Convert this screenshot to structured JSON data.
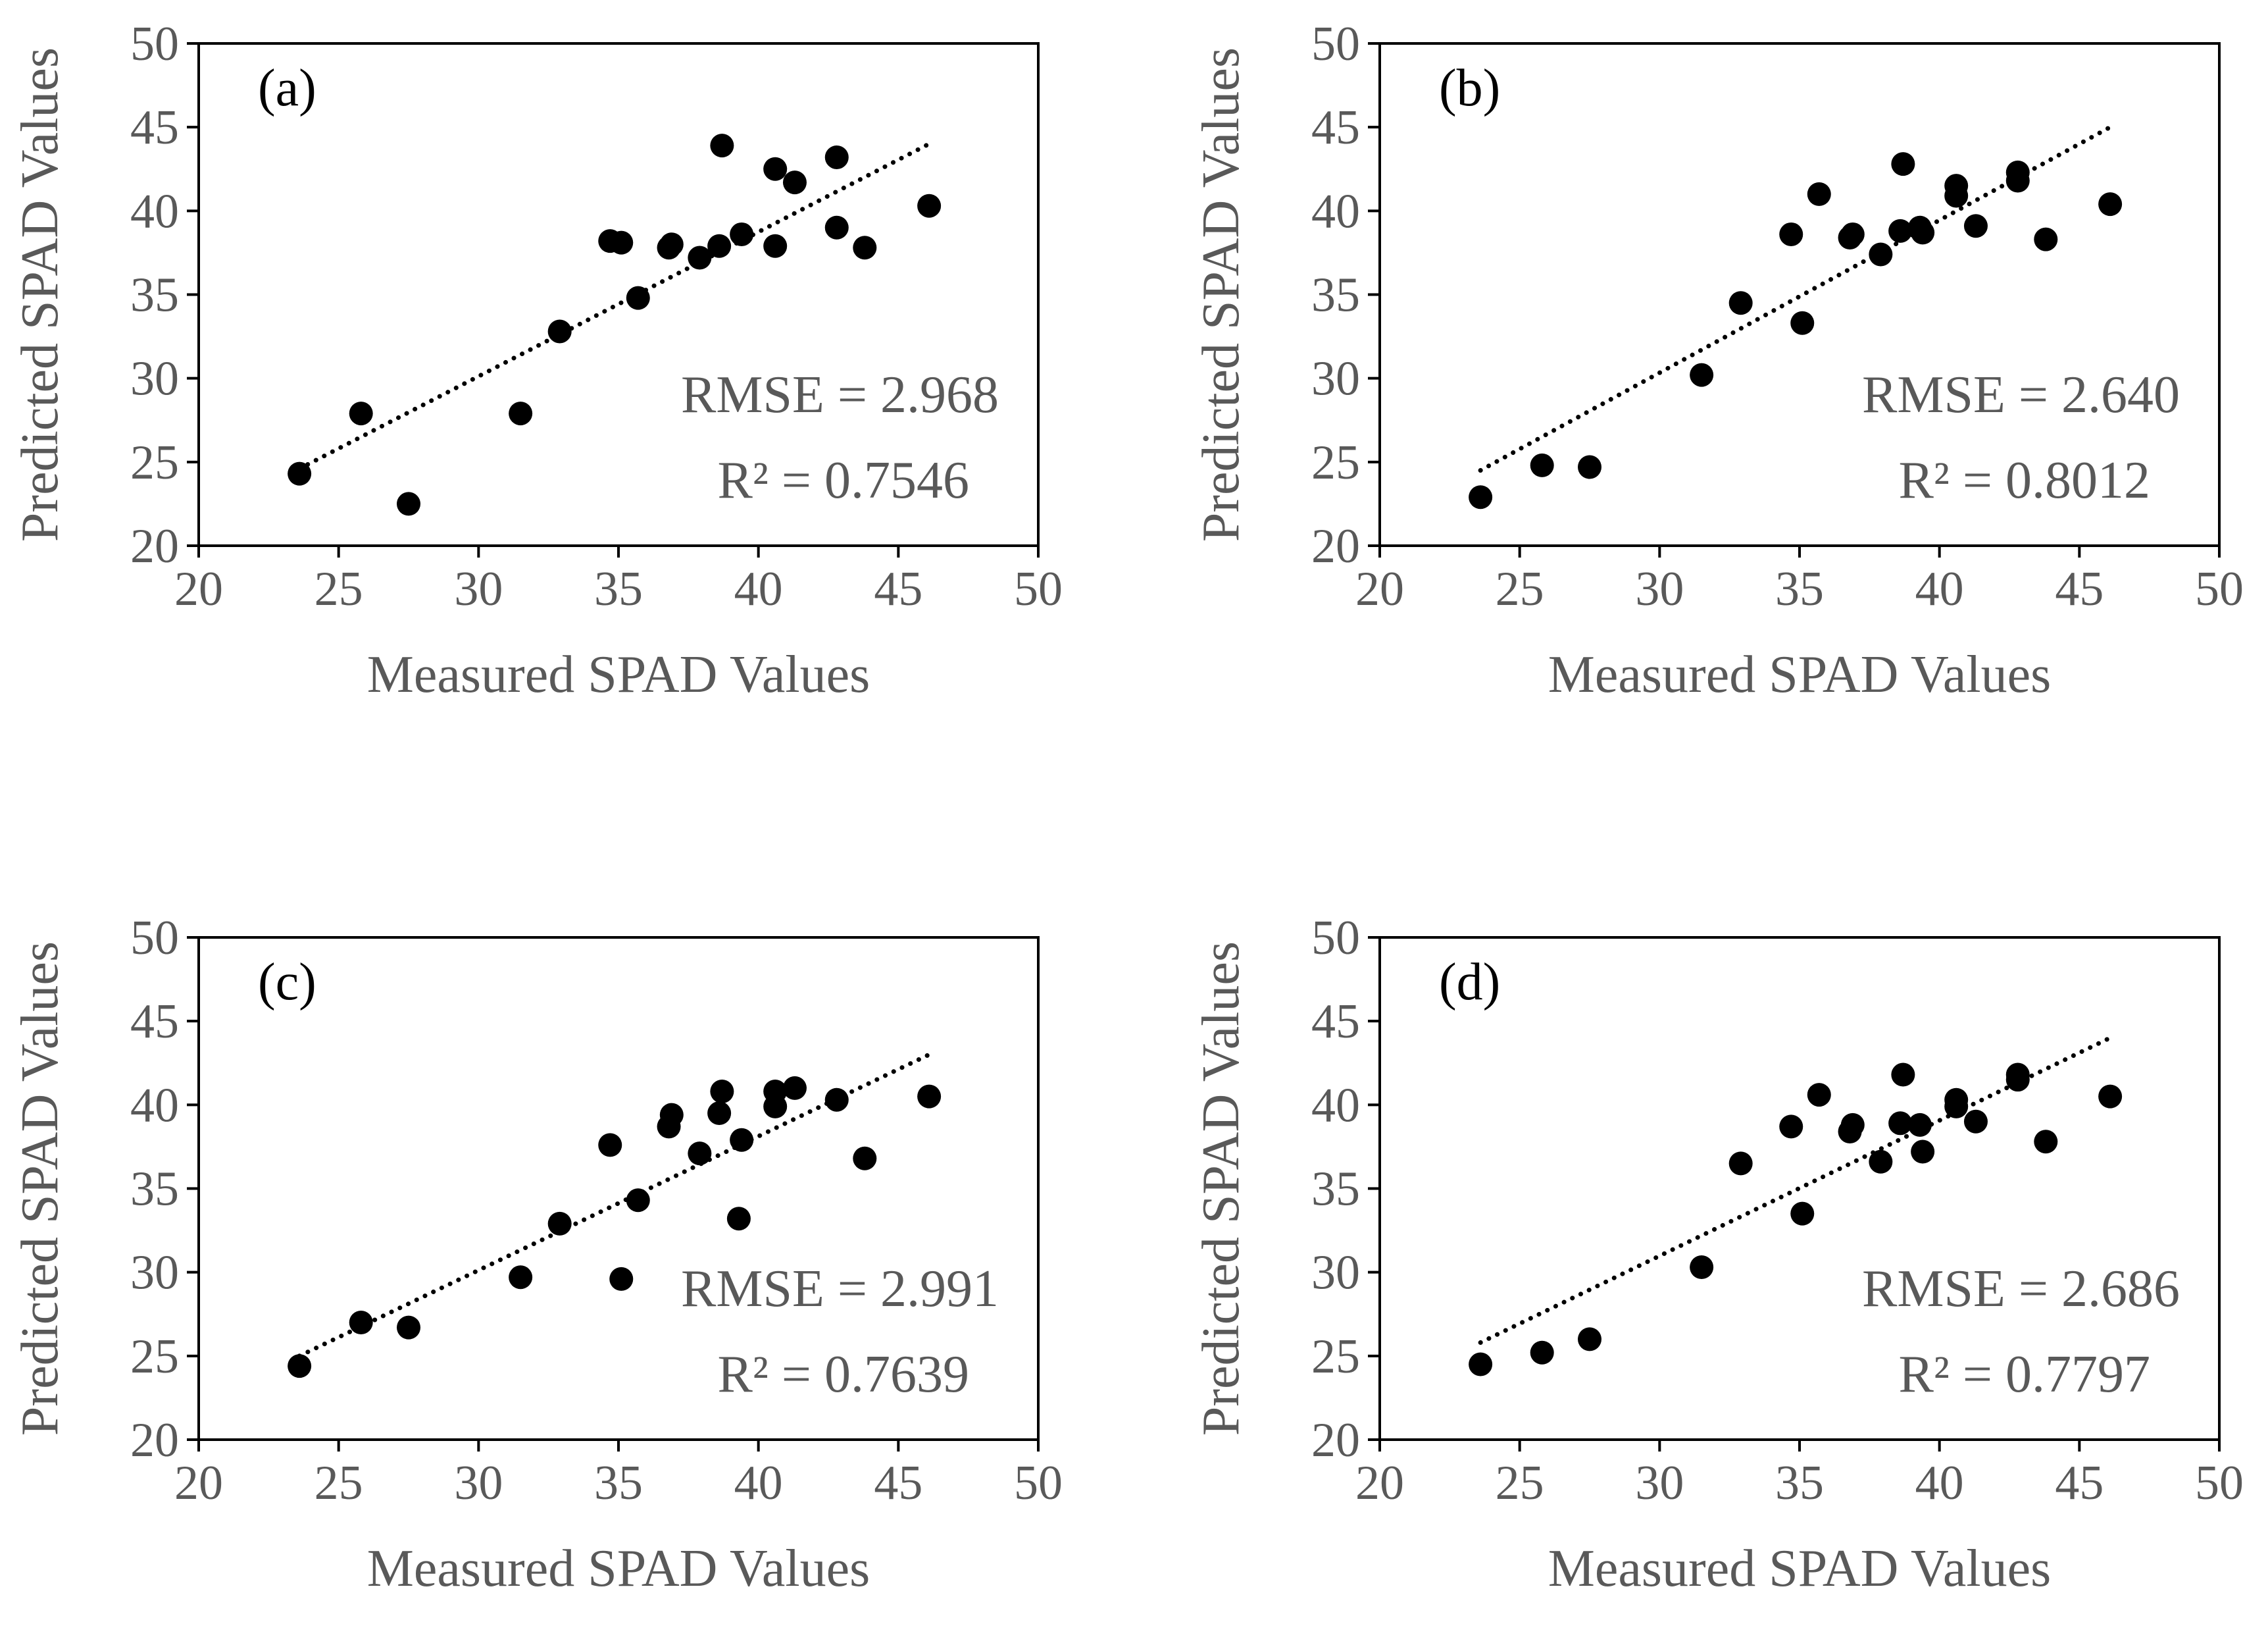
{
  "figure": {
    "colors": {
      "background": "#ffffff",
      "frame": "#000000",
      "marker": "#000000",
      "trendline": "#000000",
      "text": "#595959",
      "axis": "#000000"
    }
  },
  "chart_data": [
    {
      "type": "scatter",
      "panel_label": "(a)",
      "xlabel": "Measured SPAD Values",
      "ylabel": "Predicted SPAD Values",
      "xlim": [
        20,
        50
      ],
      "ylim": [
        20,
        50
      ],
      "xticks": [
        "20",
        "25",
        "30",
        "35",
        "40",
        "45",
        "50"
      ],
      "yticks": [
        "20",
        "25",
        "30",
        "35",
        "40",
        "45",
        "50"
      ],
      "stats": {
        "rmse": "RMSE = 2.968",
        "r2": "R² = 0.7546"
      },
      "trendline": {
        "style": "dotted",
        "x": [
          23.6,
          46.1
        ],
        "y": [
          24.6,
          44.0
        ]
      },
      "series": [
        {
          "name": "samples",
          "x": [
            23.6,
            25.8,
            27.5,
            31.5,
            32.9,
            34.7,
            35.1,
            35.7,
            36.8,
            36.9,
            37.9,
            38.6,
            38.7,
            39.4,
            40.6,
            40.6,
            41.3,
            42.8,
            42.8,
            43.8,
            46.1
          ],
          "y": [
            24.3,
            27.9,
            22.5,
            27.9,
            32.8,
            38.2,
            38.1,
            34.8,
            37.8,
            38.0,
            37.2,
            37.9,
            43.9,
            38.6,
            37.9,
            42.5,
            41.7,
            43.2,
            39.0,
            37.8,
            40.3
          ]
        }
      ]
    },
    {
      "type": "scatter",
      "panel_label": "(b)",
      "xlabel": "Measured SPAD Values",
      "ylabel": "Predicted SPAD Values",
      "xlim": [
        20,
        50
      ],
      "ylim": [
        20,
        50
      ],
      "xticks": [
        "20",
        "25",
        "30",
        "35",
        "40",
        "45",
        "50"
      ],
      "yticks": [
        "20",
        "25",
        "30",
        "35",
        "40",
        "45",
        "50"
      ],
      "stats": {
        "rmse": "RMSE = 2.640",
        "r2": "R² = 0.8012"
      },
      "trendline": {
        "style": "dotted",
        "x": [
          23.6,
          46.1
        ],
        "y": [
          24.5,
          45.0
        ]
      },
      "series": [
        {
          "name": "samples",
          "x": [
            23.6,
            25.8,
            27.5,
            31.5,
            32.9,
            34.7,
            35.1,
            35.7,
            36.8,
            36.9,
            37.9,
            38.6,
            38.7,
            39.3,
            39.4,
            40.6,
            40.6,
            41.3,
            42.8,
            42.8,
            43.8,
            46.1
          ],
          "y": [
            22.9,
            24.8,
            24.7,
            30.2,
            34.5,
            38.6,
            33.3,
            41.0,
            38.4,
            38.6,
            37.4,
            38.8,
            42.8,
            39.0,
            38.7,
            41.5,
            40.9,
            39.1,
            42.3,
            41.8,
            38.3,
            40.4
          ]
        }
      ]
    },
    {
      "type": "scatter",
      "panel_label": "(c)",
      "xlabel": "Measured SPAD Values",
      "ylabel": "Predicted SPAD Values",
      "xlim": [
        20,
        50
      ],
      "ylim": [
        20,
        50
      ],
      "xticks": [
        "20",
        "25",
        "30",
        "35",
        "40",
        "45",
        "50"
      ],
      "yticks": [
        "20",
        "25",
        "30",
        "35",
        "40",
        "45",
        "50"
      ],
      "stats": {
        "rmse": "RMSE = 2.991",
        "r2": "R² = 0.7639"
      },
      "trendline": {
        "style": "dotted",
        "x": [
          23.6,
          46.1
        ],
        "y": [
          25.0,
          43.0
        ]
      },
      "series": [
        {
          "name": "samples",
          "x": [
            23.6,
            25.8,
            27.5,
            31.5,
            32.9,
            34.7,
            35.1,
            35.7,
            36.8,
            36.9,
            37.9,
            38.6,
            38.7,
            39.3,
            39.4,
            40.6,
            40.6,
            41.3,
            42.8,
            43.8,
            46.1
          ],
          "y": [
            24.4,
            27.0,
            26.7,
            29.7,
            32.9,
            37.6,
            29.6,
            34.3,
            38.7,
            39.4,
            37.1,
            39.5,
            40.8,
            33.2,
            37.9,
            39.9,
            40.8,
            41.0,
            40.3,
            36.8,
            40.5
          ]
        }
      ]
    },
    {
      "type": "scatter",
      "panel_label": "(d)",
      "xlabel": "Measured SPAD Values",
      "ylabel": "Predicted SPAD Values",
      "xlim": [
        20,
        50
      ],
      "ylim": [
        20,
        50
      ],
      "xticks": [
        "20",
        "25",
        "30",
        "35",
        "40",
        "45",
        "50"
      ],
      "yticks": [
        "20",
        "25",
        "30",
        "35",
        "40",
        "45",
        "50"
      ],
      "stats": {
        "rmse": "RMSE = 2.686",
        "r2": "R² = 0.7797"
      },
      "trendline": {
        "style": "dotted",
        "x": [
          23.6,
          46.1
        ],
        "y": [
          25.8,
          44.0
        ]
      },
      "series": [
        {
          "name": "samples",
          "x": [
            23.6,
            25.8,
            27.5,
            31.5,
            32.9,
            34.7,
            35.1,
            35.7,
            36.8,
            36.9,
            37.9,
            38.6,
            38.7,
            39.3,
            39.4,
            40.6,
            40.6,
            41.3,
            42.8,
            42.8,
            43.8,
            46.1
          ],
          "y": [
            24.5,
            25.2,
            26.0,
            30.3,
            36.5,
            38.7,
            33.5,
            40.6,
            38.4,
            38.8,
            36.6,
            38.9,
            41.8,
            38.8,
            37.2,
            39.9,
            40.3,
            39.0,
            41.8,
            41.5,
            37.8,
            40.5
          ]
        }
      ]
    }
  ]
}
